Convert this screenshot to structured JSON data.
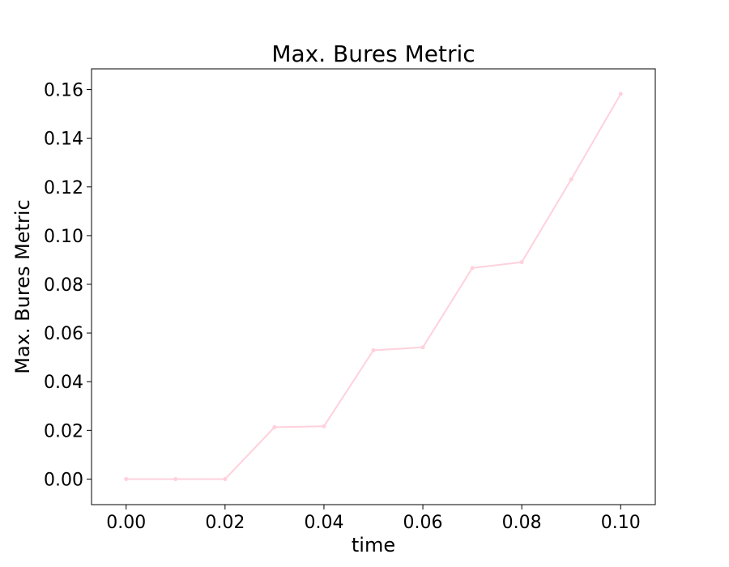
{
  "chart_data": {
    "type": "line",
    "title": "Max. Bures Metric",
    "xlabel": "time",
    "ylabel": "Max. Bures Metric",
    "xlim": [
      -0.007,
      0.107
    ],
    "ylim": [
      -0.0105,
      0.1685
    ],
    "x_ticks": [
      0.0,
      0.02,
      0.04,
      0.06,
      0.08,
      0.1
    ],
    "x_tick_labels": [
      "0.00",
      "0.02",
      "0.04",
      "0.06",
      "0.08",
      "0.10"
    ],
    "y_ticks": [
      0.0,
      0.02,
      0.04,
      0.06,
      0.08,
      0.1,
      0.12,
      0.14,
      0.16
    ],
    "y_tick_labels": [
      "0.00",
      "0.02",
      "0.04",
      "0.06",
      "0.08",
      "0.10",
      "0.12",
      "0.14",
      "0.16"
    ],
    "grid": false,
    "series": [
      {
        "color": "#ffd1dc",
        "x": [
          0.0,
          0.01,
          0.02,
          0.03,
          0.04,
          0.05,
          0.06,
          0.07,
          0.08,
          0.09,
          0.1
        ],
        "y": [
          0.0,
          0.0,
          0.0,
          0.0213,
          0.0217,
          0.0529,
          0.0541,
          0.0867,
          0.0891,
          0.1231,
          0.1582
        ]
      }
    ]
  }
}
